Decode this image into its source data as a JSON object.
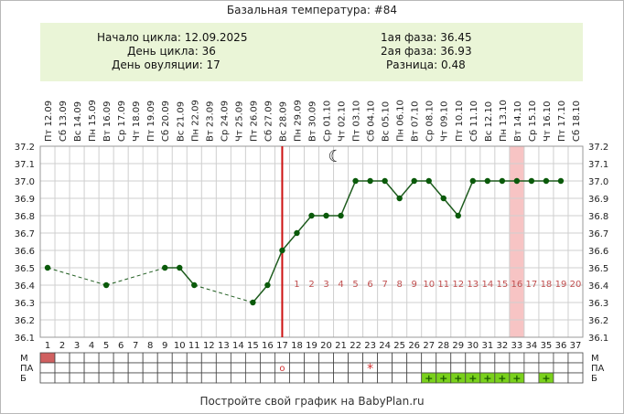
{
  "header": {
    "title": "Базальная температура: #84"
  },
  "info": {
    "left": [
      "Начало цикла: 12.09.2025",
      "День цикла: 36",
      "День овуляции: 17"
    ],
    "right": [
      "1ая фаза: 36.45",
      "2ая фаза: 36.93",
      "Разница: 0.48"
    ]
  },
  "footer": {
    "text": "Постройте свой график на BabyPlan.ru"
  },
  "chart_data": {
    "type": "line",
    "title": "Базальная температура: #84",
    "days": [
      1,
      2,
      3,
      4,
      5,
      6,
      7,
      8,
      9,
      10,
      11,
      12,
      13,
      14,
      15,
      16,
      17,
      18,
      19,
      20,
      21,
      22,
      23,
      24,
      25,
      26,
      27,
      28,
      29,
      30,
      31,
      32,
      33,
      34,
      35,
      36,
      37
    ],
    "dates": [
      "Пт 12.09",
      "Сб 13.09",
      "Вс 14.09",
      "Пн 15.09",
      "Вт 16.09",
      "Ср 17.09",
      "Чт 18.09",
      "Пт 19.09",
      "Сб 20.09",
      "Вс 21.09",
      "Пн 22.09",
      "Вт 23.09",
      "Ср 24.09",
      "Чт 25.09",
      "Пт 26.09",
      "Сб 27.09",
      "Вс 28.09",
      "Пн 29.09",
      "Вт 30.09",
      "Ср 01.10",
      "Чт 02.10",
      "Пт 03.10",
      "Сб 04.10",
      "Вс 05.10",
      "Пн 06.10",
      "Вт 07.10",
      "Ср 08.10",
      "Чт 09.10",
      "Пт 10.10",
      "Сб 11.10",
      "Вс 12.10",
      "Пн 13.10",
      "Вт 14.10",
      "Ср 15.10",
      "Чт 16.10",
      "Пт 17.10",
      "Сб 18.10"
    ],
    "ylim": [
      36.1,
      37.2
    ],
    "y_ticks": [
      "36.1",
      "36.2",
      "36.3",
      "36.4",
      "36.5",
      "36.6",
      "36.7",
      "36.8",
      "36.9",
      "37.0",
      "37.1",
      "37.2"
    ],
    "temperatures": [
      36.5,
      null,
      null,
      null,
      36.4,
      null,
      null,
      null,
      36.5,
      36.5,
      36.4,
      null,
      null,
      null,
      36.3,
      36.4,
      36.6,
      36.7,
      36.8,
      36.8,
      36.8,
      37.0,
      37.0,
      37.0,
      36.9,
      37.0,
      37.0,
      36.9,
      36.8,
      37.0,
      37.0,
      37.0,
      37.0,
      37.0,
      37.0,
      37.0,
      null
    ],
    "ovulation_day": 17,
    "highlight_day": 33,
    "luteal_labels": [
      "1",
      "2",
      "3",
      "4",
      "5",
      "6",
      "7",
      "8",
      "9",
      "10",
      "11",
      "12",
      "13",
      "14",
      "15",
      "16",
      "17",
      "18",
      "19",
      "20"
    ],
    "luteal_start_day": 18,
    "luteal_bad_day": 33,
    "moon_day": 20,
    "rows": [
      {
        "label": "М",
        "marks": {
          "1": "fill"
        }
      },
      {
        "label": "ПА",
        "marks": {
          "17": "circle",
          "23": "star"
        }
      },
      {
        "label": "Б",
        "marks": {
          "27": "plus",
          "28": "plus",
          "29": "plus",
          "30": "plus",
          "31": "plus",
          "32": "plus",
          "33": "plus",
          "35": "plus"
        }
      }
    ],
    "plus_glyph": "+",
    "star_glyph": "*",
    "circle_glyph": "o",
    "moon_glyph": "☾",
    "colors": {
      "line": "#1e5c1e",
      "point": "#0a5a0a",
      "ovulation": "#cc1111",
      "highlight": "#f7c4c4",
      "grid": "#cfcfcf",
      "luteal_label": "#c05050",
      "menses": "#d06060",
      "plus_bg": "#7ad11c",
      "info_bg": "#eaf5d7"
    }
  }
}
